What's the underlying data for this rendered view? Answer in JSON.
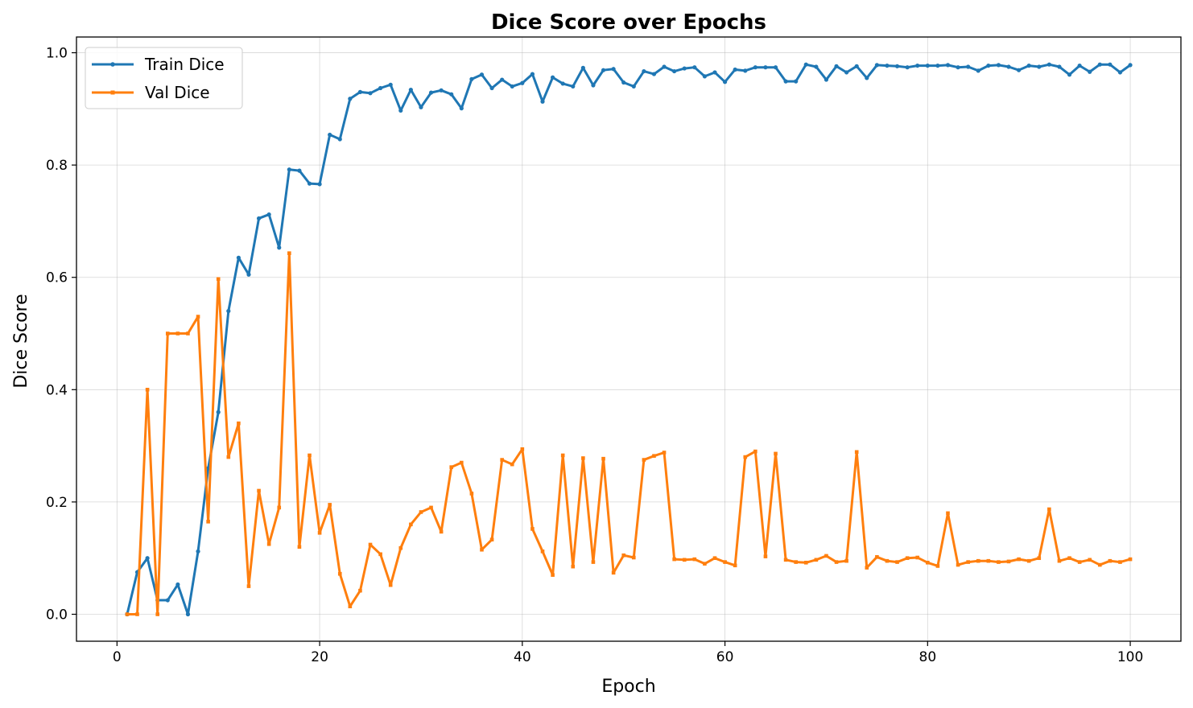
{
  "chart_data": {
    "type": "line",
    "title": "Dice Score over Epochs",
    "xlabel": "Epoch",
    "ylabel": "Dice Score",
    "xlim": [
      -4,
      105
    ],
    "ylim": [
      -0.048,
      1.028
    ],
    "xticks": [
      0,
      20,
      40,
      60,
      80,
      100
    ],
    "yticks": [
      0.0,
      0.2,
      0.4,
      0.6,
      0.8,
      1.0
    ],
    "xtick_labels": [
      "0",
      "20",
      "40",
      "60",
      "80",
      "100"
    ],
    "ytick_labels": [
      "0.0",
      "0.2",
      "0.4",
      "0.6",
      "0.8",
      "1.0"
    ],
    "grid": true,
    "legend_position": "top-left",
    "x": [
      1,
      2,
      3,
      4,
      5,
      6,
      7,
      8,
      9,
      10,
      11,
      12,
      13,
      14,
      15,
      16,
      17,
      18,
      19,
      20,
      21,
      22,
      23,
      24,
      25,
      26,
      27,
      28,
      29,
      30,
      31,
      32,
      33,
      34,
      35,
      36,
      37,
      38,
      39,
      40,
      41,
      42,
      43,
      44,
      45,
      46,
      47,
      48,
      49,
      50,
      51,
      52,
      53,
      54,
      55,
      56,
      57,
      58,
      59,
      60,
      61,
      62,
      63,
      64,
      65,
      66,
      67,
      68,
      69,
      70,
      71,
      72,
      73,
      74,
      75,
      76,
      77,
      78,
      79,
      80,
      81,
      82,
      83,
      84,
      85,
      86,
      87,
      88,
      89,
      90,
      91,
      92,
      93,
      94,
      95,
      96,
      97,
      98,
      99,
      100
    ],
    "series": [
      {
        "name": "Train Dice",
        "color": "#1f77b4",
        "marker": "circle",
        "values": [
          0.0,
          0.075,
          0.1,
          0.025,
          0.025,
          0.053,
          0.0,
          0.112,
          0.26,
          0.36,
          0.54,
          0.635,
          0.605,
          0.705,
          0.712,
          0.653,
          0.792,
          0.79,
          0.767,
          0.766,
          0.854,
          0.846,
          0.918,
          0.93,
          0.928,
          0.937,
          0.943,
          0.897,
          0.934,
          0.903,
          0.929,
          0.933,
          0.926,
          0.901,
          0.953,
          0.961,
          0.937,
          0.952,
          0.94,
          0.946,
          0.962,
          0.913,
          0.956,
          0.945,
          0.94,
          0.973,
          0.942,
          0.969,
          0.971,
          0.947,
          0.94,
          0.967,
          0.962,
          0.975,
          0.967,
          0.972,
          0.974,
          0.958,
          0.965,
          0.948,
          0.97,
          0.968,
          0.974,
          0.974,
          0.974,
          0.949,
          0.949,
          0.979,
          0.975,
          0.952,
          0.976,
          0.965,
          0.976,
          0.955,
          0.978,
          0.977,
          0.976,
          0.974,
          0.977,
          0.977,
          0.977,
          0.978,
          0.974,
          0.975,
          0.968,
          0.977,
          0.978,
          0.975,
          0.969,
          0.977,
          0.975,
          0.979,
          0.975,
          0.961,
          0.977,
          0.966,
          0.979,
          0.979,
          0.965,
          0.978
        ]
      },
      {
        "name": "Val Dice",
        "color": "#ff7f0e",
        "marker": "square",
        "values": [
          0.0,
          0.0,
          0.4,
          0.0,
          0.5,
          0.5,
          0.5,
          0.53,
          0.165,
          0.597,
          0.28,
          0.34,
          0.05,
          0.22,
          0.125,
          0.19,
          0.643,
          0.12,
          0.283,
          0.145,
          0.195,
          0.072,
          0.014,
          0.042,
          0.124,
          0.107,
          0.052,
          0.118,
          0.16,
          0.182,
          0.19,
          0.147,
          0.262,
          0.27,
          0.215,
          0.115,
          0.133,
          0.275,
          0.267,
          0.294,
          0.152,
          0.112,
          0.07,
          0.283,
          0.085,
          0.278,
          0.093,
          0.277,
          0.074,
          0.105,
          0.101,
          0.275,
          0.282,
          0.288,
          0.098,
          0.097,
          0.098,
          0.09,
          0.1,
          0.093,
          0.087,
          0.28,
          0.29,
          0.103,
          0.286,
          0.097,
          0.093,
          0.092,
          0.097,
          0.104,
          0.093,
          0.095,
          0.289,
          0.083,
          0.102,
          0.095,
          0.093,
          0.1,
          0.101,
          0.092,
          0.086,
          0.18,
          0.088,
          0.093,
          0.095,
          0.095,
          0.093,
          0.094,
          0.098,
          0.095,
          0.1,
          0.187,
          0.095,
          0.1,
          0.093,
          0.097,
          0.088,
          0.095,
          0.093,
          0.098
        ]
      }
    ]
  }
}
